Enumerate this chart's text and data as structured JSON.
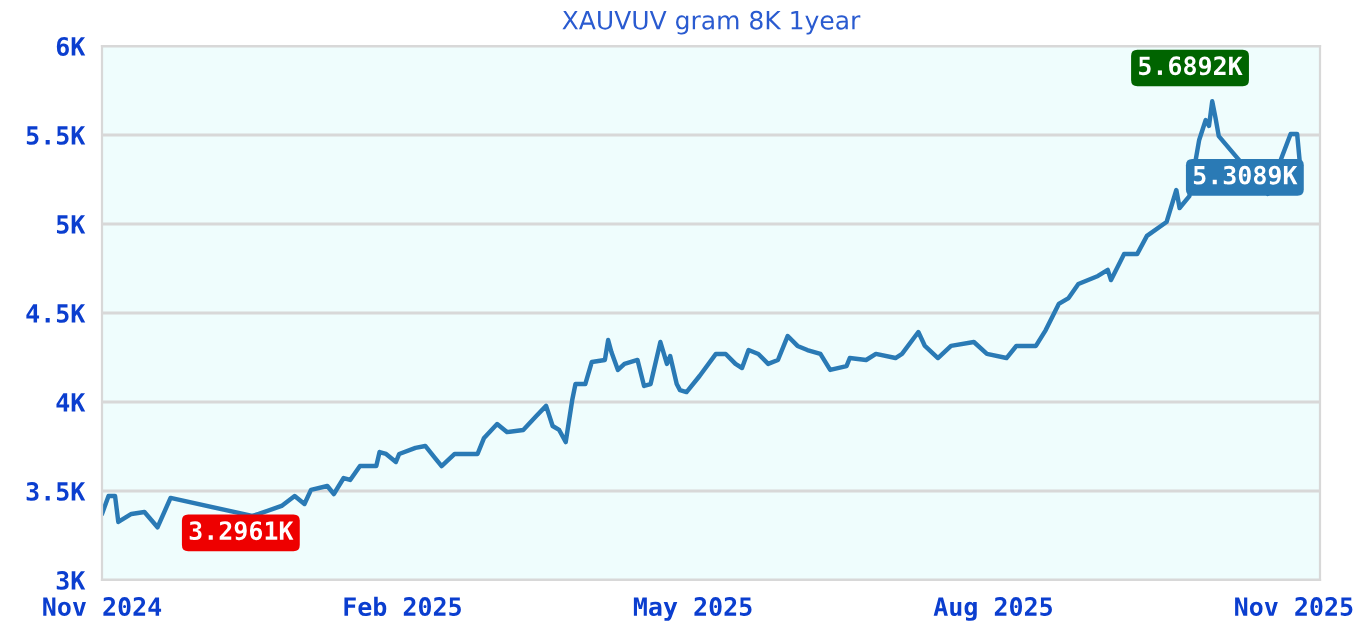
{
  "chart_data": {
    "type": "line",
    "title": "XAUVUV gram 8K 1year",
    "x": [
      "2024-11-01",
      "2024-11-03",
      "2024-11-05",
      "2024-11-06",
      "2024-11-10",
      "2024-11-14",
      "2024-11-18",
      "2024-11-22",
      "2024-12-17",
      "2024-12-19",
      "2024-12-26",
      "2024-12-30",
      "2025-01-02",
      "2025-01-04",
      "2025-01-09",
      "2025-01-11",
      "2025-01-14",
      "2025-01-16",
      "2025-01-19",
      "2025-01-24",
      "2025-01-25",
      "2025-01-27",
      "2025-01-30",
      "2025-01-31",
      "2025-02-05",
      "2025-02-08",
      "2025-02-11",
      "2025-02-13",
      "2025-02-17",
      "2025-02-24",
      "2025-02-26",
      "2025-03-02",
      "2025-03-05",
      "2025-03-10",
      "2025-03-14",
      "2025-03-17",
      "2025-03-19",
      "2025-03-21",
      "2025-03-23",
      "2025-03-25",
      "2025-03-26",
      "2025-03-29",
      "2025-03-31",
      "2025-04-04",
      "2025-04-05",
      "2025-04-06",
      "2025-04-08",
      "2025-04-10",
      "2025-04-14",
      "2025-04-16",
      "2025-04-18",
      "2025-04-21",
      "2025-04-23",
      "2025-04-24",
      "2025-04-26",
      "2025-04-27",
      "2025-04-29",
      "2025-05-03",
      "2025-05-08",
      "2025-05-11",
      "2025-05-14",
      "2025-05-16",
      "2025-05-18",
      "2025-05-21",
      "2025-05-24",
      "2025-05-27",
      "2025-05-30",
      "2025-06-02",
      "2025-06-05",
      "2025-06-09",
      "2025-06-12",
      "2025-06-17",
      "2025-06-18",
      "2025-06-23",
      "2025-06-26",
      "2025-07-02",
      "2025-07-04",
      "2025-07-09",
      "2025-07-11",
      "2025-07-15",
      "2025-07-19",
      "2025-07-26",
      "2025-07-30",
      "2025-08-05",
      "2025-08-08",
      "2025-08-14",
      "2025-08-17",
      "2025-08-21",
      "2025-08-24",
      "2025-08-27",
      "2025-09-02",
      "2025-09-05",
      "2025-09-06",
      "2025-09-10",
      "2025-09-14",
      "2025-09-17",
      "2025-09-23",
      "2025-09-26",
      "2025-09-27",
      "2025-09-30",
      "2025-10-03",
      "2025-10-05",
      "2025-10-06",
      "2025-10-07",
      "2025-10-08",
      "2025-10-09",
      "2025-10-24",
      "2025-10-31",
      "2025-11-02",
      "2025-11-03"
    ],
    "series": [
      {
        "color": "#2a7ab5",
        "values": [
          3371,
          3472,
          3472,
          3326,
          3371,
          3382,
          3296.1,
          3461,
          3360,
          3371,
          3416,
          3472,
          3427,
          3506,
          3528,
          3483,
          3573,
          3562,
          3640,
          3640,
          3719,
          3708,
          3663,
          3708,
          3742,
          3753,
          3685,
          3640,
          3708,
          3708,
          3798,
          3876,
          3831,
          3843,
          3921,
          3978,
          3865,
          3843,
          3775,
          4011,
          4101,
          4101,
          4225,
          4236,
          4348,
          4281,
          4180,
          4214,
          4236,
          4090,
          4101,
          4337,
          4214,
          4258,
          4101,
          4067,
          4056,
          4146,
          4270,
          4270,
          4214,
          4191,
          4292,
          4270,
          4214,
          4236,
          4371,
          4315,
          4292,
          4270,
          4180,
          4202,
          4247,
          4236,
          4270,
          4247,
          4270,
          4393,
          4315,
          4247,
          4315,
          4337,
          4270,
          4247,
          4315,
          4315,
          4404,
          4551,
          4584,
          4663,
          4708,
          4742,
          4685,
          4831,
          4831,
          4933,
          5011,
          5191,
          5090,
          5157,
          5472,
          5584,
          5551,
          5689.2,
          5596,
          5494,
          5169,
          5506,
          5506,
          5308.9
        ]
      }
    ],
    "xlim": [
      "2024-11-01",
      "2025-11-09"
    ],
    "xticks": [
      {
        "value": "2024-11-01",
        "label": "Nov 2024"
      },
      {
        "value": "2025-02-01",
        "label": "Feb 2025"
      },
      {
        "value": "2025-05-01",
        "label": "May 2025"
      },
      {
        "value": "2025-08-01",
        "label": "Aug 2025"
      },
      {
        "value": "2025-11-01",
        "label": "Nov 2025"
      }
    ],
    "ylim": [
      3000,
      6000
    ],
    "yticks": [
      {
        "value": 3000,
        "label": "3K"
      },
      {
        "value": 3500,
        "label": "3.5K"
      },
      {
        "value": 4000,
        "label": "4K"
      },
      {
        "value": 4500,
        "label": "4.5K"
      },
      {
        "value": 5000,
        "label": "5K"
      },
      {
        "value": 5500,
        "label": "5.5K"
      },
      {
        "value": 6000,
        "label": "6K"
      }
    ],
    "grid": "y",
    "marker": "none",
    "line_style": "solid",
    "legend": false,
    "annotations": [
      {
        "text": "3.2961K",
        "x": "2024-11-18",
        "y": 3296.1
      },
      {
        "text": "5.6892K",
        "x": "2025-10-07",
        "y": 5689.2
      },
      {
        "text": "5.3089K",
        "x": "2025-11-03",
        "y": 5308.9
      }
    ]
  }
}
